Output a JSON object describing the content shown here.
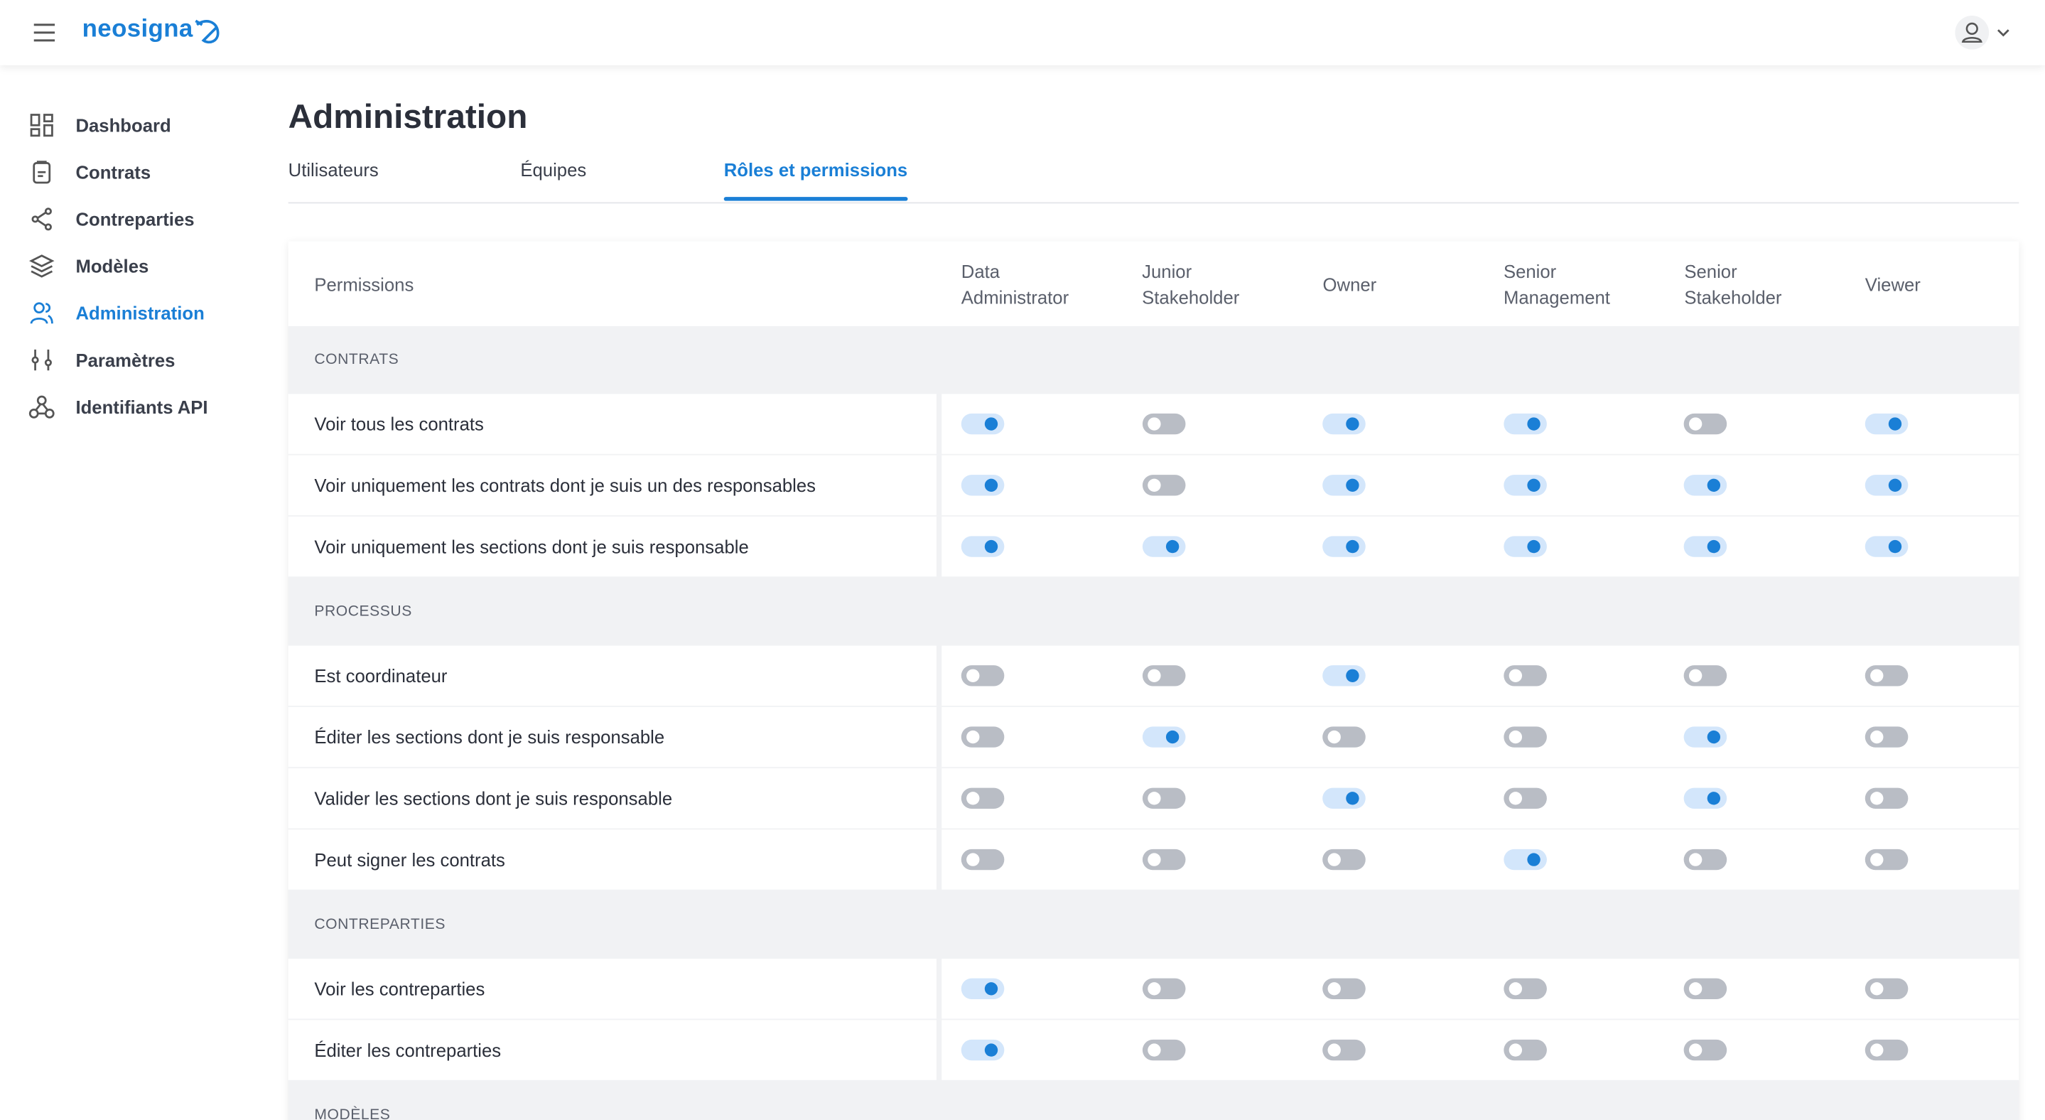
{
  "header": {
    "logo": "neosigna"
  },
  "sidebar": {
    "items": [
      "Dashboard",
      "Contrats",
      "Contreparties",
      "Modèles",
      "Administration",
      "Paramètres",
      "Identifiants API"
    ],
    "active": 4
  },
  "page": {
    "title": "Administration",
    "tabs": [
      "Utilisateurs",
      "Équipes",
      "Rôles et permissions"
    ],
    "active_tab": 2
  },
  "table": {
    "header": "Permissions",
    "roles": [
      "Data Administrator",
      "Junior Stakeholder",
      "Owner",
      "Senior Management",
      "Senior Stakeholder",
      "Viewer"
    ],
    "sections": [
      {
        "title": "CONTRATS",
        "rows": [
          {
            "label": "Voir tous les contrats",
            "values": [
              true,
              false,
              true,
              true,
              false,
              true
            ]
          },
          {
            "label": "Voir uniquement les contrats dont je suis un des responsables",
            "values": [
              true,
              false,
              true,
              true,
              true,
              true
            ]
          },
          {
            "label": "Voir uniquement les sections dont je suis responsable",
            "values": [
              true,
              true,
              true,
              true,
              true,
              true
            ]
          }
        ]
      },
      {
        "title": "PROCESSUS",
        "rows": [
          {
            "label": "Est coordinateur",
            "values": [
              false,
              false,
              true,
              false,
              false,
              false
            ]
          },
          {
            "label": "Éditer les sections dont je suis responsable",
            "values": [
              false,
              true,
              false,
              false,
              true,
              false
            ]
          },
          {
            "label": "Valider les sections dont je suis responsable",
            "values": [
              false,
              false,
              true,
              false,
              true,
              false
            ]
          },
          {
            "label": "Peut signer les contrats",
            "values": [
              false,
              false,
              false,
              true,
              false,
              false
            ]
          }
        ]
      },
      {
        "title": "CONTREPARTIES",
        "rows": [
          {
            "label": "Voir les contreparties",
            "values": [
              true,
              false,
              false,
              false,
              false,
              false
            ]
          },
          {
            "label": "Éditer les contreparties",
            "values": [
              true,
              false,
              false,
              false,
              false,
              false
            ]
          }
        ]
      },
      {
        "title": "MODÈLES",
        "rows": []
      }
    ]
  }
}
